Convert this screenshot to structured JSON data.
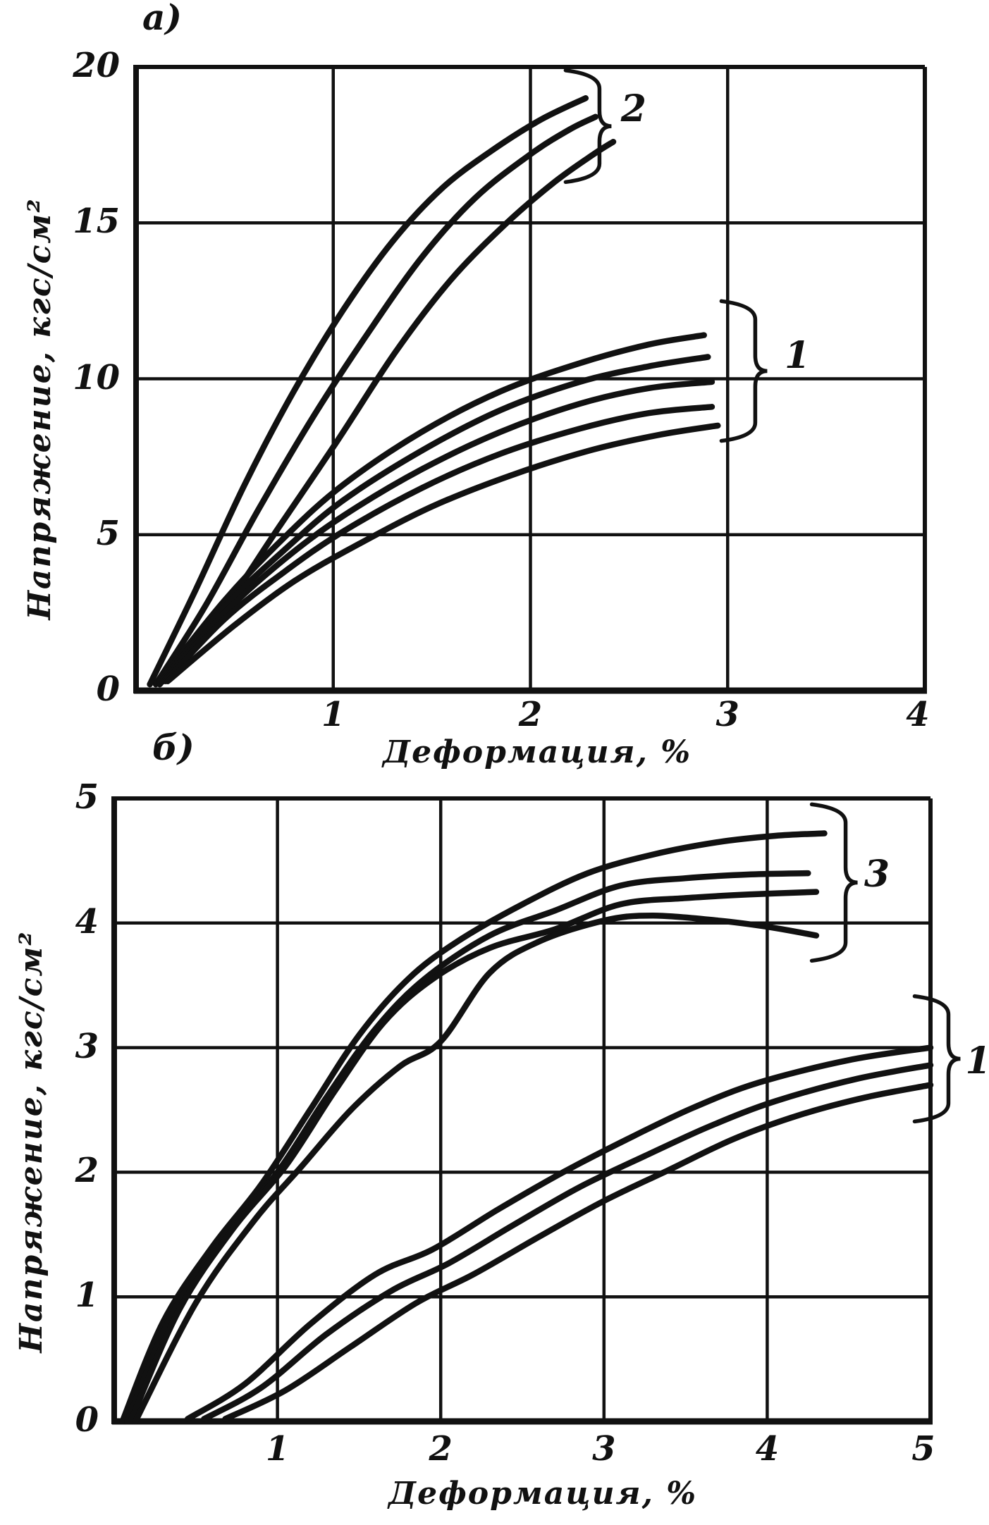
{
  "figure": {
    "background": "#ffffff",
    "ink_color": "#111111",
    "description": "Two hand-drawn stress-strain diagrams (scanned figure)"
  },
  "chart_data": [
    {
      "id": "a",
      "type": "line",
      "panel_label": "a)",
      "title": "",
      "xlabel": "Деформация, %",
      "ylabel": "Напряжение, кгс/см²",
      "xlim": [
        0,
        4
      ],
      "ylim": [
        0,
        20
      ],
      "x_ticks": [
        1,
        2,
        3,
        4
      ],
      "y_ticks": [
        0,
        5,
        10,
        15,
        20
      ],
      "grid": true,
      "legend_position": "none",
      "series": [
        {
          "name": "group-2-curve-1",
          "group": "2",
          "points": [
            [
              0.07,
              0.2
            ],
            [
              0.3,
              3.2
            ],
            [
              0.55,
              6.6
            ],
            [
              0.8,
              9.6
            ],
            [
              1.05,
              12.2
            ],
            [
              1.3,
              14.4
            ],
            [
              1.55,
              16.1
            ],
            [
              1.8,
              17.3
            ],
            [
              2.05,
              18.3
            ],
            [
              2.28,
              19.0
            ]
          ]
        },
        {
          "name": "group-2-curve-2",
          "group": "2",
          "points": [
            [
              0.1,
              0.2
            ],
            [
              0.35,
              2.7
            ],
            [
              0.62,
              5.8
            ],
            [
              0.9,
              8.8
            ],
            [
              1.18,
              11.5
            ],
            [
              1.45,
              13.9
            ],
            [
              1.72,
              15.8
            ],
            [
              2.0,
              17.2
            ],
            [
              2.2,
              18.0
            ],
            [
              2.33,
              18.4
            ]
          ]
        },
        {
          "name": "group-2-curve-3",
          "group": "2",
          "points": [
            [
              0.12,
              0.2
            ],
            [
              0.42,
              2.4
            ],
            [
              0.72,
              5.2
            ],
            [
              1.02,
              8.0
            ],
            [
              1.32,
              10.9
            ],
            [
              1.6,
              13.2
            ],
            [
              1.88,
              15.0
            ],
            [
              2.12,
              16.3
            ],
            [
              2.32,
              17.2
            ],
            [
              2.42,
              17.6
            ]
          ]
        },
        {
          "name": "group-1-curve-1",
          "group": "1",
          "points": [
            [
              0.12,
              0.3
            ],
            [
              0.45,
              2.9
            ],
            [
              0.75,
              4.9
            ],
            [
              1.05,
              6.6
            ],
            [
              1.45,
              8.3
            ],
            [
              1.85,
              9.6
            ],
            [
              2.25,
              10.5
            ],
            [
              2.6,
              11.1
            ],
            [
              2.88,
              11.4
            ]
          ]
        },
        {
          "name": "group-1-curve-2",
          "group": "1",
          "points": [
            [
              0.13,
              0.3
            ],
            [
              0.45,
              2.7
            ],
            [
              0.75,
              4.5
            ],
            [
              1.05,
              6.1
            ],
            [
              1.45,
              7.7
            ],
            [
              1.85,
              9.0
            ],
            [
              2.25,
              9.9
            ],
            [
              2.6,
              10.4
            ],
            [
              2.9,
              10.7
            ]
          ]
        },
        {
          "name": "group-1-curve-3",
          "group": "1",
          "points": [
            [
              0.14,
              0.3
            ],
            [
              0.45,
              2.5
            ],
            [
              0.75,
              4.2
            ],
            [
              1.05,
              5.6
            ],
            [
              1.45,
              7.1
            ],
            [
              1.85,
              8.3
            ],
            [
              2.25,
              9.2
            ],
            [
              2.6,
              9.7
            ],
            [
              2.92,
              9.9
            ]
          ]
        },
        {
          "name": "group-1-curve-4",
          "group": "1",
          "points": [
            [
              0.15,
              0.3
            ],
            [
              0.45,
              2.3
            ],
            [
              0.75,
              3.8
            ],
            [
              1.05,
              5.1
            ],
            [
              1.45,
              6.5
            ],
            [
              1.85,
              7.6
            ],
            [
              2.25,
              8.4
            ],
            [
              2.6,
              8.9
            ],
            [
              2.92,
              9.1
            ]
          ]
        },
        {
          "name": "group-1-curve-5",
          "group": "1",
          "points": [
            [
              0.16,
              0.3
            ],
            [
              0.5,
              2.1
            ],
            [
              0.8,
              3.5
            ],
            [
              1.1,
              4.6
            ],
            [
              1.5,
              5.9
            ],
            [
              1.9,
              6.9
            ],
            [
              2.3,
              7.7
            ],
            [
              2.65,
              8.2
            ],
            [
              2.95,
              8.5
            ]
          ]
        }
      ],
      "annotations": [
        {
          "label": "2",
          "x": 2.53,
          "y": 18.6,
          "brace": {
            "x": 2.35,
            "y_top": 19.8,
            "y_bottom": 16.4
          }
        },
        {
          "label": "1",
          "x": 3.36,
          "y": 10.7,
          "brace": {
            "x": 3.14,
            "y_top": 12.4,
            "y_bottom": 8.1
          }
        }
      ]
    },
    {
      "id": "b",
      "type": "line",
      "panel_label": "б)",
      "title": "",
      "xlabel": "Деформация, %",
      "ylabel": "Напряжение, кгс/см²",
      "xlim": [
        0,
        5
      ],
      "ylim": [
        0,
        5
      ],
      "x_ticks": [
        1,
        2,
        3,
        4,
        5
      ],
      "y_ticks": [
        0,
        1,
        2,
        3,
        4,
        5
      ],
      "grid": true,
      "legend_position": "none",
      "series": [
        {
          "name": "group-3-curve-1",
          "group": "3",
          "points": [
            [
              0.05,
              0.0
            ],
            [
              0.3,
              0.8
            ],
            [
              0.6,
              1.4
            ],
            [
              0.9,
              1.9
            ],
            [
              1.2,
              2.5
            ],
            [
              1.5,
              3.1
            ],
            [
              1.8,
              3.55
            ],
            [
              2.1,
              3.85
            ],
            [
              2.5,
              4.15
            ],
            [
              2.9,
              4.4
            ],
            [
              3.3,
              4.55
            ],
            [
              3.7,
              4.65
            ],
            [
              4.05,
              4.7
            ],
            [
              4.35,
              4.72
            ]
          ]
        },
        {
          "name": "group-3-curve-2",
          "group": "3",
          "points": [
            [
              0.08,
              0.0
            ],
            [
              0.35,
              0.85
            ],
            [
              0.68,
              1.5
            ],
            [
              1.0,
              2.0
            ],
            [
              1.3,
              2.6
            ],
            [
              1.6,
              3.15
            ],
            [
              1.9,
              3.55
            ],
            [
              2.3,
              3.9
            ],
            [
              2.7,
              4.1
            ],
            [
              3.1,
              4.3
            ],
            [
              3.5,
              4.36
            ],
            [
              3.9,
              4.39
            ],
            [
              4.25,
              4.4
            ]
          ]
        },
        {
          "name": "group-3-curve-3",
          "group": "3",
          "points": [
            [
              0.1,
              0.0
            ],
            [
              0.4,
              0.9
            ],
            [
              0.73,
              1.55
            ],
            [
              1.05,
              2.05
            ],
            [
              1.35,
              2.65
            ],
            [
              1.65,
              3.2
            ],
            [
              1.95,
              3.55
            ],
            [
              2.3,
              3.8
            ],
            [
              2.7,
              3.95
            ],
            [
              3.1,
              4.15
            ],
            [
              3.5,
              4.2
            ],
            [
              3.9,
              4.23
            ],
            [
              4.3,
              4.25
            ]
          ]
        },
        {
          "name": "group-3-curve-4-drooping",
          "group": "3",
          "points": [
            [
              0.13,
              0.0
            ],
            [
              0.5,
              0.95
            ],
            [
              0.85,
              1.6
            ],
            [
              1.15,
              2.05
            ],
            [
              1.45,
              2.5
            ],
            [
              1.75,
              2.85
            ],
            [
              2.0,
              3.05
            ],
            [
              2.3,
              3.6
            ],
            [
              2.6,
              3.85
            ],
            [
              3.0,
              4.02
            ],
            [
              3.3,
              4.06
            ],
            [
              3.7,
              4.02
            ],
            [
              4.0,
              3.97
            ],
            [
              4.3,
              3.9
            ]
          ]
        },
        {
          "name": "group-1-curve-1",
          "group": "1",
          "points": [
            [
              0.45,
              0.02
            ],
            [
              0.8,
              0.3
            ],
            [
              1.2,
              0.78
            ],
            [
              1.6,
              1.18
            ],
            [
              1.95,
              1.38
            ],
            [
              2.35,
              1.7
            ],
            [
              2.75,
              2.0
            ],
            [
              3.15,
              2.27
            ],
            [
              3.55,
              2.52
            ],
            [
              3.95,
              2.72
            ],
            [
              4.5,
              2.9
            ],
            [
              5.0,
              3.0
            ]
          ]
        },
        {
          "name": "group-1-curve-2",
          "group": "1",
          "points": [
            [
              0.55,
              0.02
            ],
            [
              0.9,
              0.27
            ],
            [
              1.3,
              0.7
            ],
            [
              1.7,
              1.05
            ],
            [
              2.05,
              1.27
            ],
            [
              2.45,
              1.58
            ],
            [
              2.85,
              1.88
            ],
            [
              3.25,
              2.13
            ],
            [
              3.65,
              2.37
            ],
            [
              4.05,
              2.57
            ],
            [
              4.55,
              2.75
            ],
            [
              5.0,
              2.86
            ]
          ]
        },
        {
          "name": "group-1-curve-3",
          "group": "1",
          "points": [
            [
              0.68,
              0.02
            ],
            [
              1.05,
              0.25
            ],
            [
              1.45,
              0.6
            ],
            [
              1.85,
              0.95
            ],
            [
              2.2,
              1.18
            ],
            [
              2.6,
              1.48
            ],
            [
              3.0,
              1.77
            ],
            [
              3.4,
              2.02
            ],
            [
              3.8,
              2.27
            ],
            [
              4.2,
              2.46
            ],
            [
              4.6,
              2.6
            ],
            [
              5.0,
              2.7
            ]
          ]
        }
      ],
      "annotations": [
        {
          "label": "3",
          "x": 4.68,
          "y": 4.38,
          "brace": {
            "x": 4.48,
            "y_top": 4.93,
            "y_bottom": 3.72
          }
        },
        {
          "label": "1",
          "x": 5.3,
          "y": 2.88,
          "brace": {
            "x": 5.11,
            "y_top": 3.39,
            "y_bottom": 2.43
          }
        }
      ]
    }
  ]
}
